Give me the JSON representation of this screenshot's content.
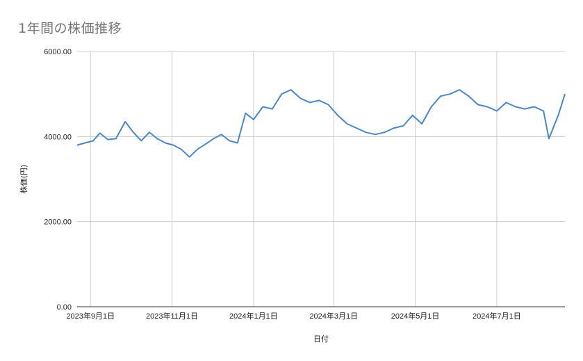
{
  "chart_data": {
    "type": "line",
    "title": "1年間の株価推移",
    "xlabel": "日付",
    "ylabel": "株価(円)",
    "ylim": [
      0,
      6000
    ],
    "y_ticks": [
      "0.00",
      "2000.00",
      "4000.00",
      "6000.00"
    ],
    "x_ticks": [
      "2023年9月1日",
      "2023年11月1日",
      "2024年1月1日",
      "2024年3月1日",
      "2024年5月1日",
      "2024年7月1日"
    ],
    "grid": true,
    "legend": "none",
    "line_color": "#4a86c8",
    "series": [
      {
        "x": [
          "2023-08-22",
          "2023-08-28",
          "2023-09-03",
          "2023-09-08",
          "2023-09-14",
          "2023-09-20",
          "2023-09-27",
          "2023-10-03",
          "2023-10-09",
          "2023-10-15",
          "2023-10-21",
          "2023-10-27",
          "2023-11-02",
          "2023-11-08",
          "2023-11-14",
          "2023-11-20",
          "2023-11-26",
          "2023-12-02",
          "2023-12-08",
          "2023-12-14",
          "2023-12-20",
          "2023-12-26",
          "2024-01-01",
          "2024-01-08",
          "2024-01-15",
          "2024-01-22",
          "2024-01-29",
          "2024-02-05",
          "2024-02-12",
          "2024-02-19",
          "2024-02-26",
          "2024-03-04",
          "2024-03-11",
          "2024-03-18",
          "2024-03-25",
          "2024-04-01",
          "2024-04-08",
          "2024-04-15",
          "2024-04-22",
          "2024-04-29",
          "2024-05-06",
          "2024-05-13",
          "2024-05-20",
          "2024-05-27",
          "2024-06-03",
          "2024-06-10",
          "2024-06-17",
          "2024-06-24",
          "2024-07-01",
          "2024-07-08",
          "2024-07-15",
          "2024-07-22",
          "2024-07-29",
          "2024-08-05",
          "2024-08-09",
          "2024-08-16",
          "2024-08-21"
        ],
        "values": [
          3800,
          3850,
          3900,
          4080,
          3930,
          3950,
          4350,
          4100,
          3900,
          4100,
          3950,
          3850,
          3800,
          3700,
          3520,
          3700,
          3820,
          3950,
          4050,
          3900,
          3850,
          4550,
          4400,
          4700,
          4650,
          5000,
          5100,
          4900,
          4800,
          4850,
          4750,
          4500,
          4300,
          4200,
          4100,
          4050,
          4100,
          4200,
          4250,
          4500,
          4300,
          4700,
          4950,
          5000,
          5100,
          4950,
          4750,
          4700,
          4600,
          4800,
          4700,
          4650,
          4700,
          4600,
          3950,
          4500,
          5000
        ]
      }
    ]
  }
}
